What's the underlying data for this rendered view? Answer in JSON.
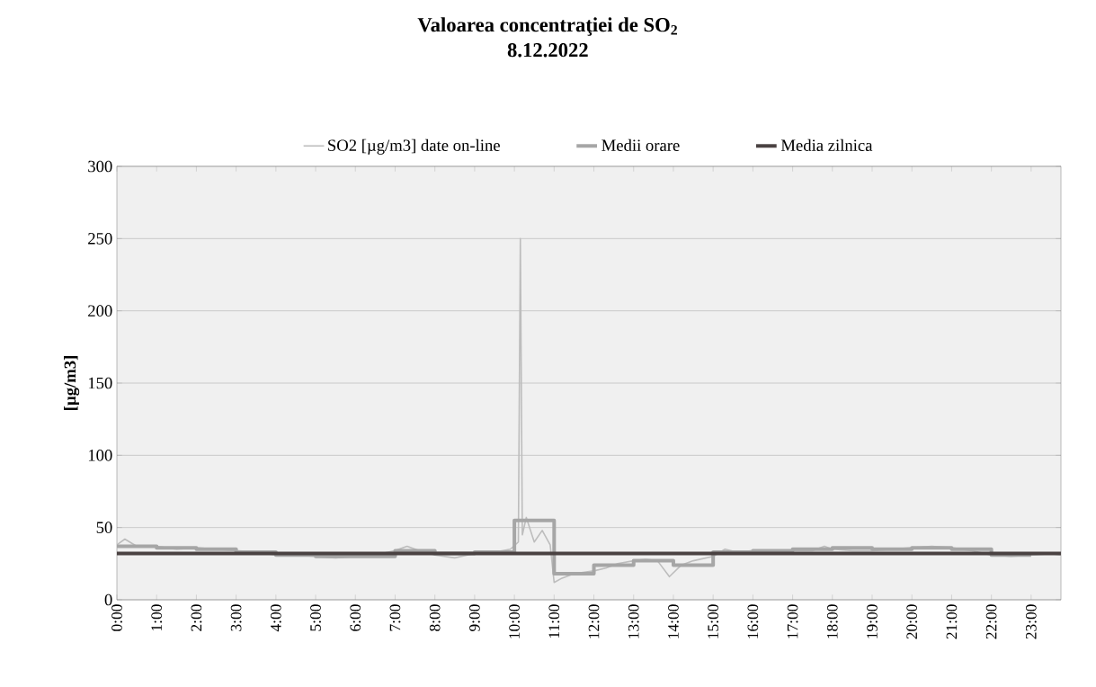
{
  "chart_data": {
    "type": "line",
    "title": "Valoarea concentraţiei de SO$_{2}$",
    "subtitle": "8.12.2022",
    "ylabel": "[µg/m3]",
    "xlim": [
      0,
      23.75
    ],
    "ylim": [
      0,
      300
    ],
    "yticks": [
      0,
      50,
      100,
      150,
      200,
      250,
      300
    ],
    "xticks": [
      {
        "value": 0,
        "label": "0:00"
      },
      {
        "value": 1,
        "label": "1:00"
      },
      {
        "value": 2,
        "label": "2:00"
      },
      {
        "value": 3,
        "label": "3:00"
      },
      {
        "value": 4,
        "label": "4:00"
      },
      {
        "value": 5,
        "label": "5:00"
      },
      {
        "value": 6,
        "label": "6:00"
      },
      {
        "value": 7,
        "label": "7:00"
      },
      {
        "value": 8,
        "label": "8:00"
      },
      {
        "value": 9,
        "label": "9:00"
      },
      {
        "value": 10,
        "label": "10:00"
      },
      {
        "value": 11,
        "label": "11:00"
      },
      {
        "value": 12,
        "label": "12:00"
      },
      {
        "value": 13,
        "label": "13:00"
      },
      {
        "value": 14,
        "label": "14:00"
      },
      {
        "value": 15,
        "label": "15:00"
      },
      {
        "value": 16,
        "label": "16:00"
      },
      {
        "value": 17,
        "label": "17:00"
      },
      {
        "value": 18,
        "label": "18:00"
      },
      {
        "value": 19,
        "label": "19:00"
      },
      {
        "value": 20,
        "label": "20:00"
      },
      {
        "value": 21,
        "label": "21:00"
      },
      {
        "value": 22,
        "label": "22:00"
      },
      {
        "value": 23,
        "label": "23:00"
      }
    ],
    "grid": "y",
    "legend": "top",
    "marker": "none",
    "series": [
      {
        "name": "SO2 [µg/m3] date on-line",
        "color": "#bdbdbd",
        "x": [
          0,
          0.2,
          0.5,
          1,
          1.5,
          2,
          2.5,
          3,
          3.5,
          4,
          4.5,
          5,
          5.5,
          6,
          6.5,
          7,
          7.3,
          7.6,
          8,
          8.5,
          9,
          9.5,
          9.9,
          10.1,
          10.15,
          10.2,
          10.3,
          10.5,
          10.7,
          10.9,
          11.0,
          11.2,
          11.5,
          12,
          12.3,
          12.6,
          13,
          13.3,
          13.6,
          13.9,
          14.2,
          14.5,
          15,
          15.3,
          15.6,
          16,
          16.5,
          17,
          17.5,
          17.8,
          18,
          18.5,
          19,
          19.5,
          20,
          20.5,
          21,
          21.5,
          22,
          22.5,
          23,
          23.5,
          23.75
        ],
        "values": [
          38,
          42,
          37,
          37,
          35,
          36,
          35,
          34,
          33,
          31,
          31,
          30,
          29,
          30,
          31,
          34,
          37,
          34,
          31,
          29,
          32,
          33,
          35,
          40,
          250,
          45,
          57,
          40,
          48,
          38,
          12,
          15,
          18,
          20,
          22,
          25,
          27,
          28,
          27,
          16,
          24,
          27,
          30,
          35,
          33,
          34,
          33,
          34,
          34,
          37,
          35,
          34,
          34,
          35,
          36,
          37,
          36,
          34,
          31,
          30,
          31,
          32,
          31
        ]
      },
      {
        "name": "Medii orare",
        "color": "#a6a6a6",
        "type": "step",
        "x": [
          0,
          1,
          2,
          3,
          4,
          5,
          6,
          7,
          8,
          9,
          10,
          11,
          12,
          13,
          14,
          15,
          16,
          17,
          18,
          19,
          20,
          21,
          22,
          23
        ],
        "values": [
          37,
          36,
          35,
          33,
          31,
          30,
          30,
          34,
          32,
          33,
          55,
          18,
          24,
          27,
          24,
          33,
          34,
          35,
          36,
          35,
          36,
          35,
          31,
          31
        ]
      },
      {
        "name": "Media zilnica",
        "color": "#4a4242",
        "x": [
          0,
          23.75
        ],
        "values": [
          32,
          32
        ]
      }
    ]
  }
}
